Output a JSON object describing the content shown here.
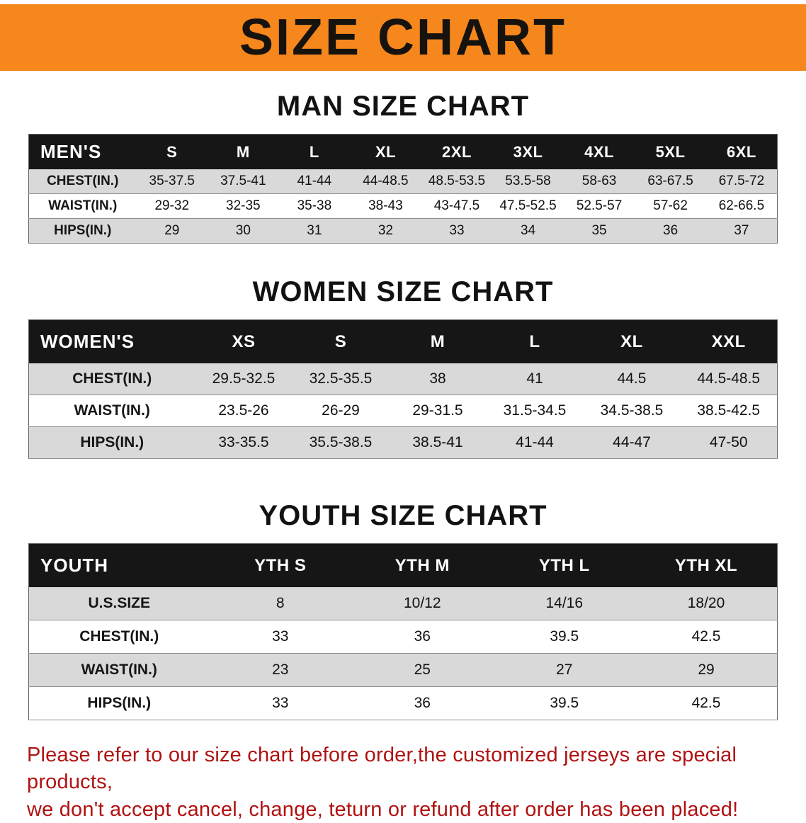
{
  "banner": {
    "title": "SIZE CHART",
    "bg_color": "#f6871d"
  },
  "sections": [
    {
      "heading": "MAN SIZE CHART",
      "table": {
        "header_label": "MEN'S",
        "columns": [
          "S",
          "M",
          "L",
          "XL",
          "2XL",
          "3XL",
          "4XL",
          "5XL",
          "6XL"
        ],
        "rows": [
          {
            "label": "CHEST(IN.)",
            "values": [
              "35-37.5",
              "37.5-41",
              "41-44",
              "44-48.5",
              "48.5-53.5",
              "53.5-58",
              "58-63",
              "63-67.5",
              "67.5-72"
            ]
          },
          {
            "label": "WAIST(IN.)",
            "values": [
              "29-32",
              "32-35",
              "35-38",
              "38-43",
              "43-47.5",
              "47.5-52.5",
              "52.5-57",
              "57-62",
              "62-66.5"
            ]
          },
          {
            "label": "HIPS(IN.)",
            "values": [
              "29",
              "30",
              "31",
              "32",
              "33",
              "34",
              "35",
              "36",
              "37"
            ]
          }
        ]
      }
    },
    {
      "heading": "WOMEN SIZE CHART",
      "table": {
        "header_label": "WOMEN'S",
        "columns": [
          "XS",
          "S",
          "M",
          "L",
          "XL",
          "XXL"
        ],
        "rows": [
          {
            "label": "CHEST(IN.)",
            "values": [
              "29.5-32.5",
              "32.5-35.5",
              "38",
              "41",
              "44.5",
              "44.5-48.5"
            ]
          },
          {
            "label": "WAIST(IN.)",
            "values": [
              "23.5-26",
              "26-29",
              "29-31.5",
              "31.5-34.5",
              "34.5-38.5",
              "38.5-42.5"
            ]
          },
          {
            "label": "HIPS(IN.)",
            "values": [
              "33-35.5",
              "35.5-38.5",
              "38.5-41",
              "41-44",
              "44-47",
              "47-50"
            ]
          }
        ]
      }
    },
    {
      "heading": "YOUTH SIZE CHART",
      "table": {
        "header_label": "YOUTH",
        "columns": [
          "YTH S",
          "YTH M",
          "YTH L",
          "YTH XL"
        ],
        "rows": [
          {
            "label": "U.S.SIZE",
            "values": [
              "8",
              "10/12",
              "14/16",
              "18/20"
            ]
          },
          {
            "label": "CHEST(IN.)",
            "values": [
              "33",
              "36",
              "39.5",
              "42.5"
            ]
          },
          {
            "label": "WAIST(IN.)",
            "values": [
              "23",
              "25",
              "27",
              "29"
            ]
          },
          {
            "label": "HIPS(IN.)",
            "values": [
              "33",
              "36",
              "39.5",
              "42.5"
            ]
          }
        ]
      }
    }
  ],
  "disclaimer": {
    "line1": "Please refer to our size chart before order,the customized jerseys are special products,",
    "line2": "we don't accept cancel, change, teturn or refund after order has been placed!",
    "color": "#b01212"
  }
}
